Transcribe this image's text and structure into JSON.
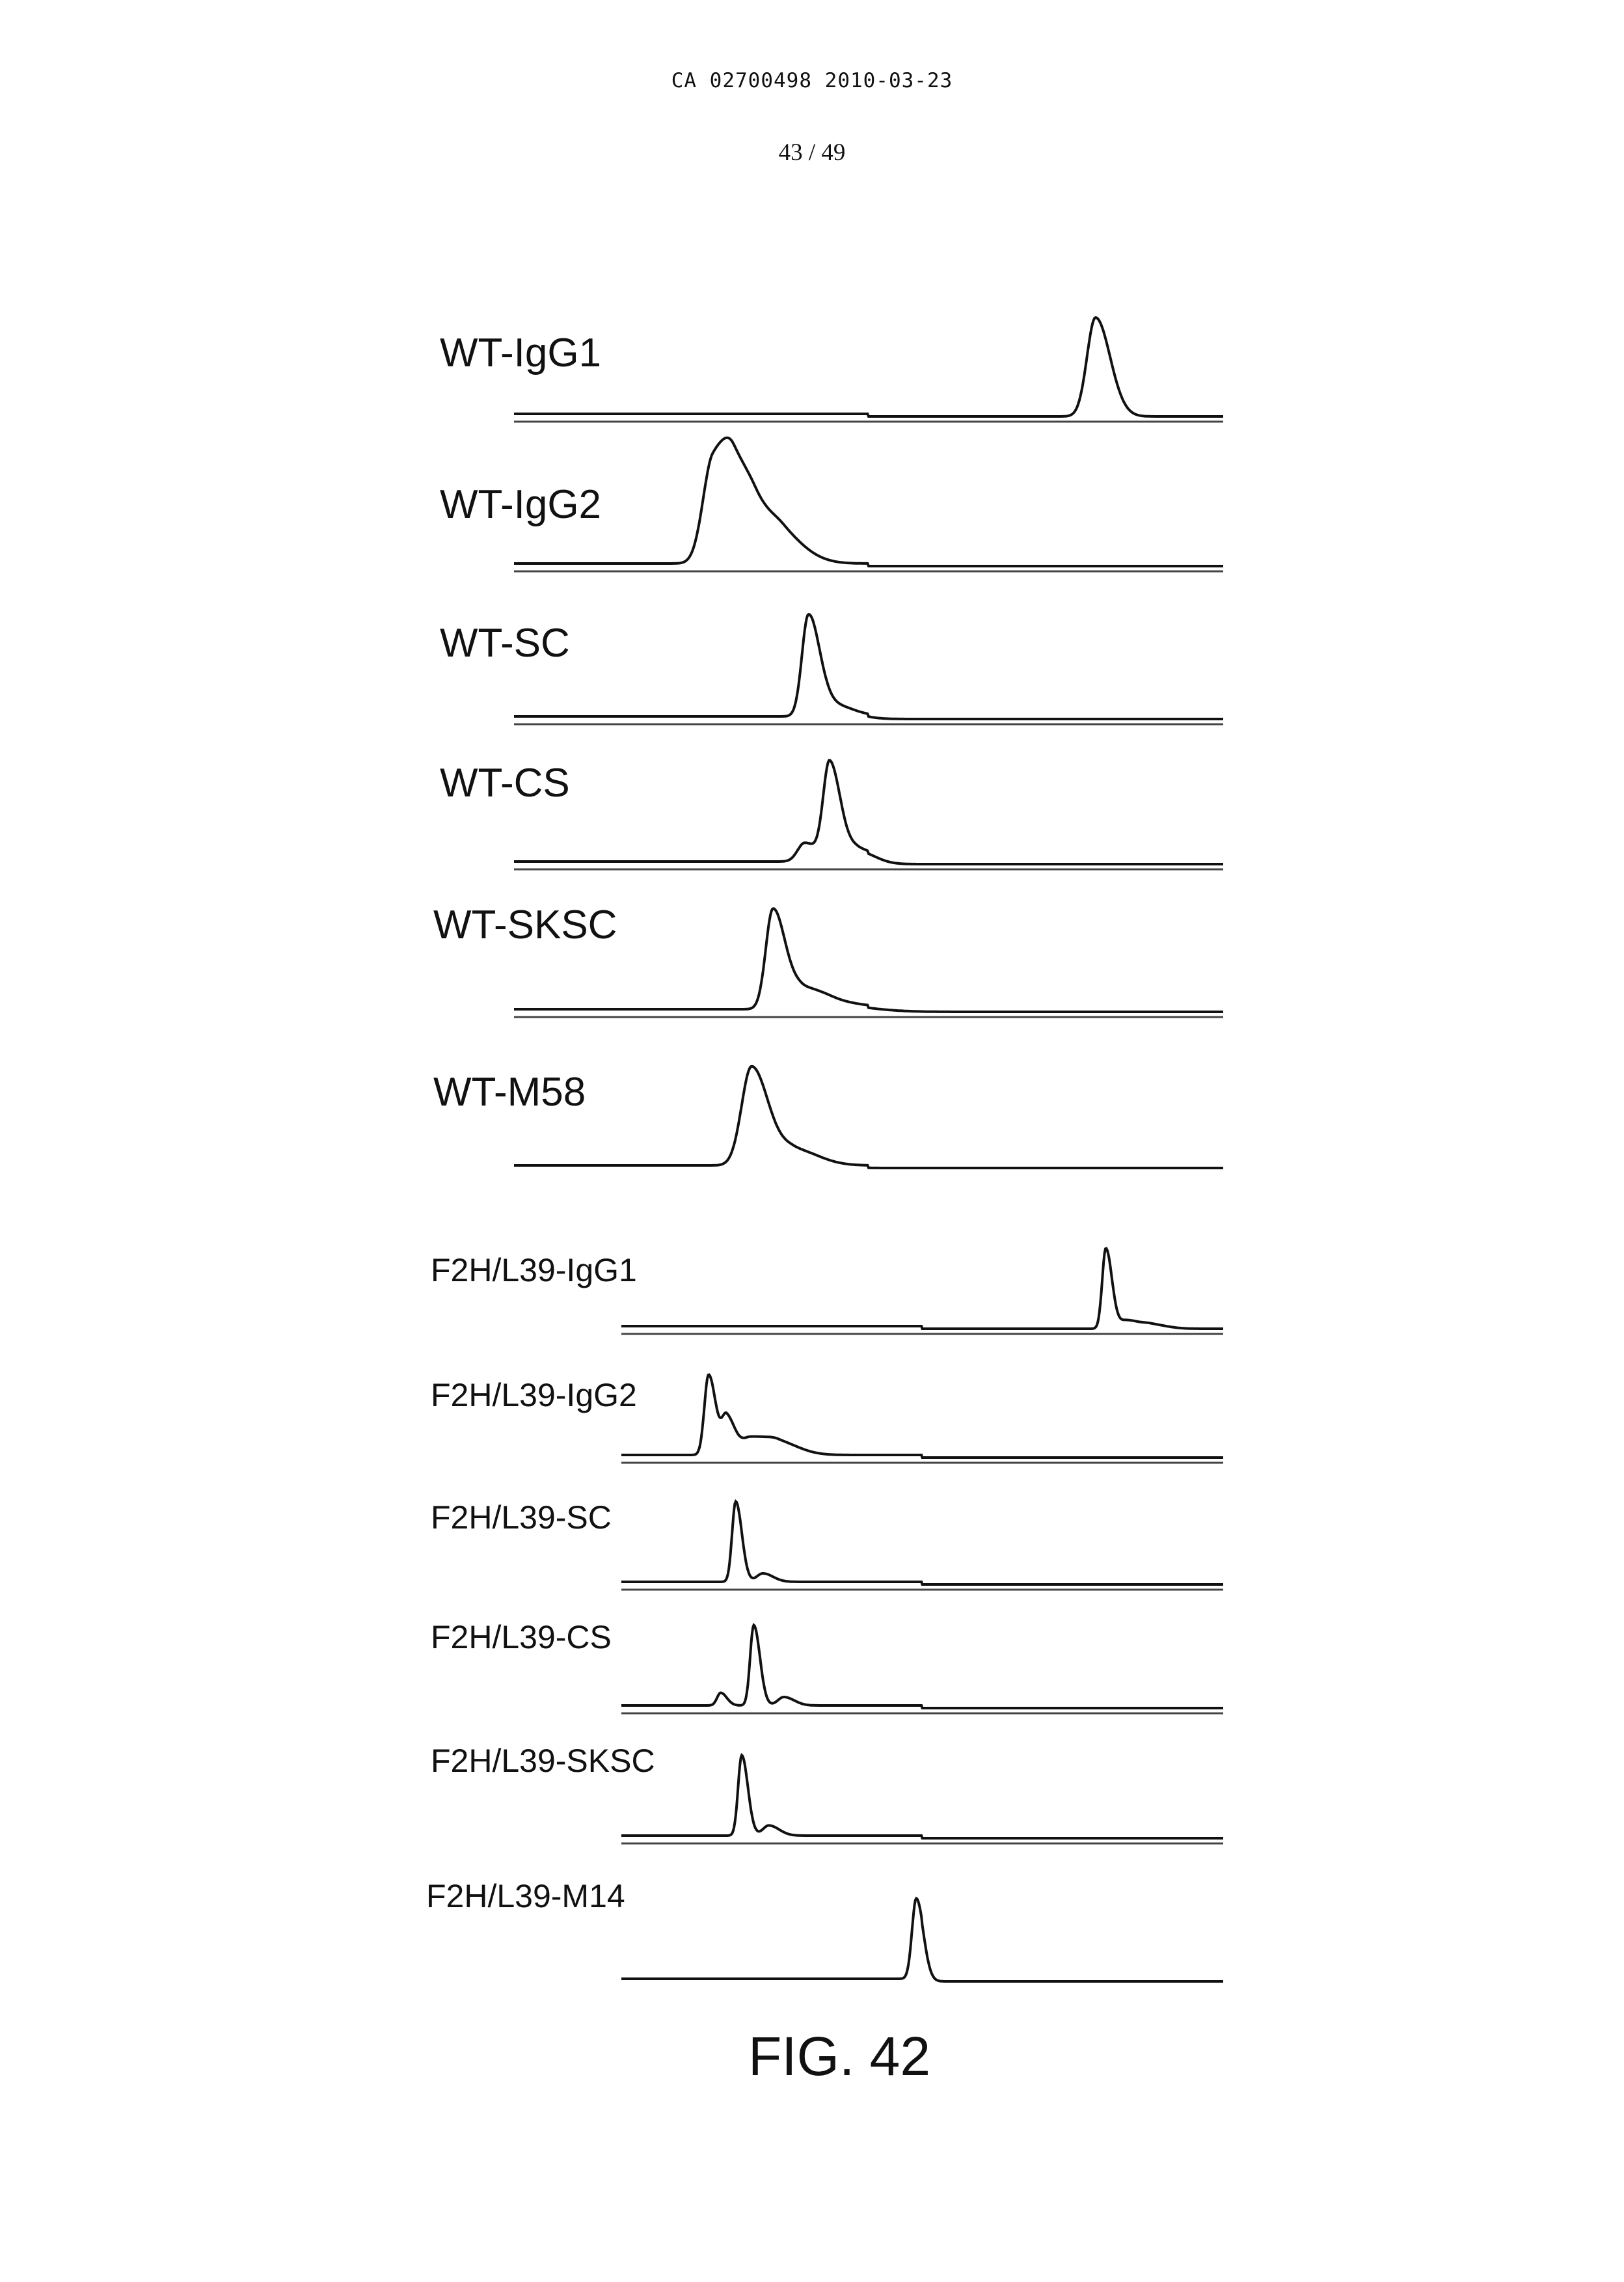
{
  "header": {
    "doc_id": "CA 02700498 2010-03-23",
    "page": "43 / 49"
  },
  "figure": {
    "caption": "FIG. 42"
  },
  "chart_data": {
    "type": "line",
    "xlabel": "",
    "ylabel": "",
    "axes_shown": false,
    "grid": false,
    "x_range": [
      0,
      1
    ],
    "y_range": [
      0,
      1
    ],
    "traces": [
      {
        "name": "WT-IgG1",
        "x_start": 0.0,
        "x_end": 1.0,
        "peaks": [
          {
            "x": 0.82,
            "h": 0.95,
            "w": 0.012
          }
        ]
      },
      {
        "name": "WT-IgG2",
        "x_start": 0.0,
        "x_end": 1.0,
        "peaks": [
          {
            "x": 0.28,
            "h": 0.95,
            "w": 0.014
          },
          {
            "x": 0.31,
            "h": 0.6,
            "w": 0.016
          },
          {
            "x": 0.34,
            "h": 0.35,
            "w": 0.02
          },
          {
            "x": 0.38,
            "h": 0.18,
            "w": 0.02
          }
        ]
      },
      {
        "name": "WT-SC",
        "x_start": 0.0,
        "x_end": 1.0,
        "peaks": [
          {
            "x": 0.415,
            "h": 0.95,
            "w": 0.009
          },
          {
            "x": 0.445,
            "h": 0.12,
            "w": 0.018
          }
        ]
      },
      {
        "name": "WT-CS",
        "x_start": 0.0,
        "x_end": 1.0,
        "peaks": [
          {
            "x": 0.41,
            "h": 0.18,
            "w": 0.01
          },
          {
            "x": 0.445,
            "h": 0.95,
            "w": 0.009
          },
          {
            "x": 0.485,
            "h": 0.12,
            "w": 0.014
          }
        ]
      },
      {
        "name": "WT-SKSC",
        "x_start": 0.0,
        "x_end": 1.0,
        "peaks": [
          {
            "x": 0.365,
            "h": 0.95,
            "w": 0.01
          },
          {
            "x": 0.405,
            "h": 0.18,
            "w": 0.018
          },
          {
            "x": 0.45,
            "h": 0.06,
            "w": 0.03
          }
        ]
      },
      {
        "name": "WT-M58",
        "x_start": 0.0,
        "x_end": 1.0,
        "peaks": [
          {
            "x": 0.335,
            "h": 0.95,
            "w": 0.014
          },
          {
            "x": 0.395,
            "h": 0.15,
            "w": 0.02
          }
        ]
      },
      {
        "name": "F2H/L39-IgG1",
        "x_start": 0.0,
        "x_end": 1.0,
        "peaks": [
          {
            "x": 0.805,
            "h": 0.95,
            "w": 0.006
          },
          {
            "x": 0.84,
            "h": 0.1,
            "w": 0.012
          },
          {
            "x": 0.88,
            "h": 0.05,
            "w": 0.015
          }
        ]
      },
      {
        "name": "F2H/L39-IgG2",
        "x_start": 0.0,
        "x_end": 1.0,
        "peaks": [
          {
            "x": 0.145,
            "h": 0.95,
            "w": 0.007
          },
          {
            "x": 0.175,
            "h": 0.45,
            "w": 0.008
          },
          {
            "x": 0.215,
            "h": 0.2,
            "w": 0.015
          },
          {
            "x": 0.26,
            "h": 0.15,
            "w": 0.02
          }
        ]
      },
      {
        "name": "F2H/L39-SC",
        "x_start": 0.0,
        "x_end": 1.0,
        "peaks": [
          {
            "x": 0.19,
            "h": 0.95,
            "w": 0.006
          },
          {
            "x": 0.235,
            "h": 0.1,
            "w": 0.01
          }
        ]
      },
      {
        "name": "F2H/L39-CS",
        "x_start": 0.0,
        "x_end": 1.0,
        "peaks": [
          {
            "x": 0.165,
            "h": 0.15,
            "w": 0.006
          },
          {
            "x": 0.22,
            "h": 0.95,
            "w": 0.006
          },
          {
            "x": 0.27,
            "h": 0.1,
            "w": 0.01
          }
        ]
      },
      {
        "name": "F2H/L39-SKSC",
        "x_start": 0.0,
        "x_end": 1.0,
        "peaks": [
          {
            "x": 0.2,
            "h": 0.95,
            "w": 0.006
          },
          {
            "x": 0.245,
            "h": 0.12,
            "w": 0.01
          }
        ]
      },
      {
        "name": "F2H/L39-M14",
        "x_start": 0.0,
        "x_end": 1.0,
        "peaks": [
          {
            "x": 0.49,
            "h": 0.95,
            "w": 0.007
          }
        ]
      }
    ]
  }
}
